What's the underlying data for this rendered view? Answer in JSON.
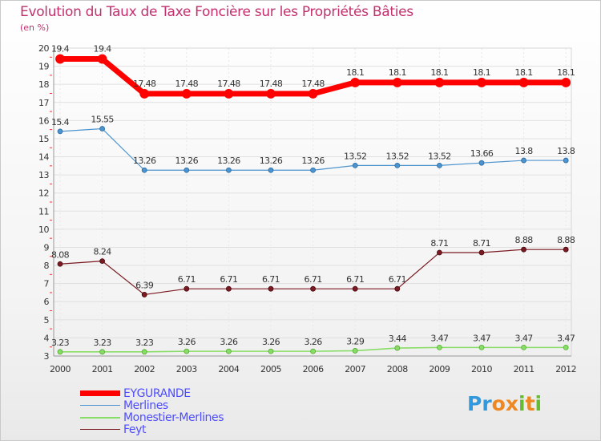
{
  "title": "Evolution du Taux de Taxe Foncière sur les Propriétés Bâties",
  "unit_label": "(en %)",
  "logo": {
    "letters": [
      "P",
      "r",
      "o",
      "x",
      "i",
      "t",
      "i"
    ],
    "colors": [
      "#3399dd",
      "#3399dd",
      "#ee8822",
      "#ee8822",
      "#66bb33",
      "#ee8822",
      "#66bb33"
    ]
  },
  "chart_data": {
    "type": "line",
    "title": "Evolution du Taux de Taxe Foncière sur les Propriétés Bâties",
    "ylabel": "(en %)",
    "xlabel": "",
    "ylim": [
      3,
      20
    ],
    "y_ticks": [
      3,
      4,
      5,
      6,
      7,
      8,
      9,
      10,
      11,
      12,
      13,
      14,
      15,
      16,
      17,
      18,
      19,
      20
    ],
    "categories": [
      "2000",
      "2001",
      "2002",
      "2003",
      "2004",
      "2005",
      "2006",
      "2007",
      "2008",
      "2009",
      "2010",
      "2011",
      "2012"
    ],
    "series": [
      {
        "name": "EYGURANDE",
        "color": "#ff0000",
        "values": [
          19.4,
          19.4,
          17.48,
          17.48,
          17.48,
          17.48,
          17.48,
          18.1,
          18.1,
          18.1,
          18.1,
          18.1,
          18.1
        ],
        "labels": [
          "19.4",
          "19.4",
          "17.48",
          "17.48",
          "17.48",
          "17.48",
          "17.48",
          "18.1",
          "18.1",
          "18.1",
          "18.1",
          "18.1",
          "18.1"
        ]
      },
      {
        "name": "Merlines",
        "color": "#4d94cf",
        "values": [
          15.4,
          15.55,
          13.26,
          13.26,
          13.26,
          13.26,
          13.26,
          13.52,
          13.52,
          13.52,
          13.66,
          13.8,
          13.8
        ],
        "labels": [
          "15.4",
          "15.55",
          "13.26",
          "13.26",
          "13.26",
          "13.26",
          "13.26",
          "13.52",
          "13.52",
          "13.52",
          "13.66",
          "13.8",
          "13.8"
        ]
      },
      {
        "name": "Monestier-Merlines",
        "color": "#88dd66",
        "values": [
          3.23,
          3.23,
          3.23,
          3.26,
          3.26,
          3.26,
          3.26,
          3.29,
          3.44,
          3.47,
          3.47,
          3.47,
          3.47
        ],
        "labels": [
          "3.23",
          "3.23",
          "3.23",
          "3.26",
          "3.26",
          "3.26",
          "3.26",
          "3.29",
          "3.44",
          "3.47",
          "3.47",
          "3.47",
          "3.47"
        ]
      },
      {
        "name": "Feyt",
        "color": "#7a1a22",
        "values": [
          8.08,
          8.24,
          6.39,
          6.71,
          6.71,
          6.71,
          6.71,
          6.71,
          6.71,
          8.71,
          8.71,
          8.88,
          8.88
        ],
        "labels": [
          "8.08",
          "8.24",
          "6.39",
          "6.71",
          "6.71",
          "6.71",
          "6.71",
          "6.71",
          "6.71",
          "8.71",
          "8.71",
          "8.88",
          "8.88"
        ]
      }
    ]
  }
}
